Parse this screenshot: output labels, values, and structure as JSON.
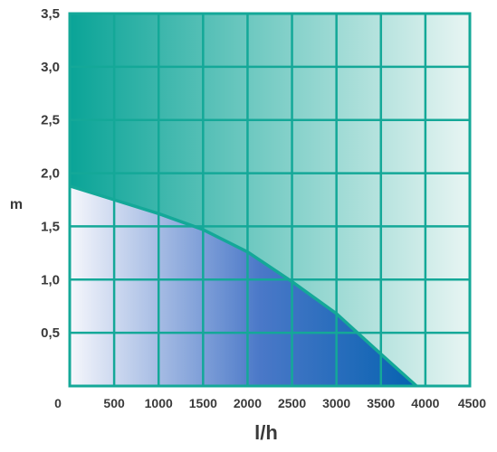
{
  "chart_data": {
    "type": "area",
    "title": "",
    "xlabel": "l/h",
    "ylabel": "m",
    "xlim": [
      0,
      4500
    ],
    "ylim": [
      0,
      3.5
    ],
    "x_ticks": [
      500,
      1000,
      1500,
      2000,
      2500,
      3000,
      3500,
      4000,
      4500
    ],
    "x_tick_labels": [
      "500",
      "1000",
      "1500",
      "2000",
      "2500",
      "3000",
      "3500",
      "4000",
      "4500"
    ],
    "y_ticks": [
      0.5,
      1.0,
      1.5,
      2.0,
      2.5,
      3.0,
      3.5
    ],
    "y_tick_labels": [
      "0,5",
      "1,0",
      "1,5",
      "2,0",
      "2,5",
      "3,0",
      "3,5"
    ],
    "origin_label": "0",
    "grid": true,
    "series": [
      {
        "x": [
          0,
          500,
          1000,
          1500,
          2000,
          2500,
          3000,
          3500,
          3900
        ],
        "y": [
          1.88,
          1.75,
          1.62,
          1.47,
          1.26,
          0.98,
          0.68,
          0.3,
          0
        ]
      }
    ],
    "colors": {
      "frame": "#14a898",
      "teal_dark": "#0aa497",
      "teal_light": "#e8f5f3",
      "blue_dark": "#0662b0",
      "blue_light": "#f6f7fc"
    }
  }
}
